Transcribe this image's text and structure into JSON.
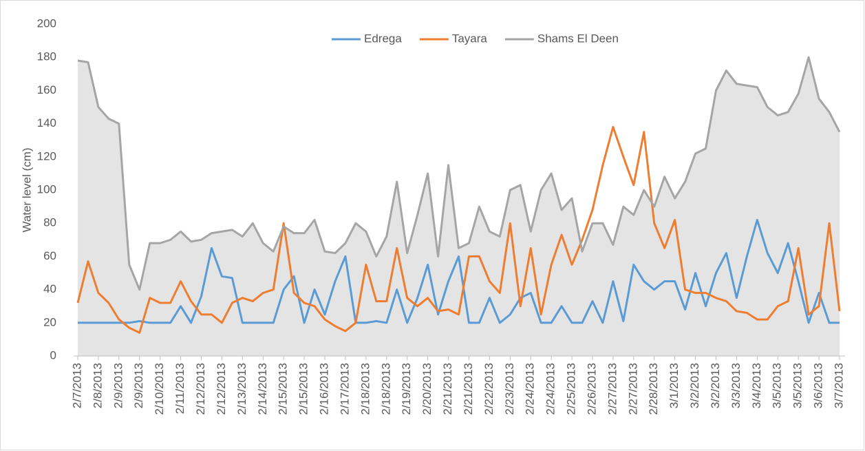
{
  "chart_data": {
    "type": "line",
    "y_label": "Water level (cm)",
    "categories": [
      "2/7/2013",
      null,
      "2/8/2013",
      null,
      "2/9/2013",
      null,
      "2/9/2013",
      null,
      "2/10/2013",
      null,
      "2/11/2013",
      null,
      "2/12/2013",
      null,
      "2/12/2013",
      null,
      "2/13/2013",
      null,
      "2/14/2013",
      null,
      "2/15/2013",
      null,
      "2/15/2013",
      null,
      "2/16/2013",
      null,
      "2/17/2013",
      null,
      "2/18/2013",
      null,
      "2/18/2013",
      null,
      "2/19/2013",
      null,
      "2/20/2013",
      null,
      "2/21/2013",
      null,
      "2/21/2013",
      null,
      "2/22/2013",
      null,
      "2/23/2013",
      null,
      "2/24/2013",
      null,
      "2/24/2013",
      null,
      "2/25/2013",
      null,
      "2/26/2013",
      null,
      "2/27/2013",
      null,
      "2/27/2013",
      null,
      "2/28/2013",
      null,
      "3/1/2013",
      null,
      "3/2/2013",
      null,
      "3/2/2013",
      null,
      "3/3/2013",
      null,
      "3/4/2013",
      null,
      "3/5/2013",
      null,
      "3/5/2013",
      null,
      "3/6/2013",
      null,
      "3/7/2013"
    ],
    "series": [
      {
        "name": "Edrega",
        "color": "#5b9bd5",
        "values": [
          20,
          20,
          20,
          20,
          20,
          20,
          21,
          20,
          20,
          20,
          30,
          20,
          36,
          65,
          48,
          47,
          20,
          20,
          20,
          20,
          40,
          48,
          20,
          40,
          25,
          45,
          60,
          20,
          20,
          21,
          20,
          40,
          20,
          35,
          55,
          25,
          45,
          60,
          20,
          20,
          35,
          20,
          25,
          35,
          38,
          20,
          20,
          30,
          20,
          20,
          33,
          20,
          45,
          21,
          55,
          45,
          40,
          45,
          45,
          28,
          50,
          30,
          50,
          62,
          35,
          60,
          82,
          62,
          50,
          68,
          45,
          20,
          38,
          20,
          20
        ]
      },
      {
        "name": "Tayara",
        "color": "#ed7d31",
        "values": [
          32,
          57,
          38,
          32,
          22,
          17,
          14,
          35,
          32,
          32,
          45,
          33,
          25,
          25,
          20,
          32,
          35,
          33,
          38,
          40,
          80,
          38,
          32,
          30,
          22,
          18,
          15,
          20,
          55,
          33,
          33,
          65,
          35,
          30,
          35,
          27,
          28,
          25,
          60,
          60,
          45,
          38,
          80,
          30,
          65,
          25,
          55,
          73,
          55,
          70,
          88,
          115,
          138,
          120,
          103,
          135,
          80,
          65,
          82,
          40,
          38,
          38,
          35,
          33,
          27,
          26,
          22,
          22,
          30,
          33,
          65,
          25,
          30,
          80,
          27
        ]
      },
      {
        "name": "Shams El Deen",
        "color": "#a5a5a5",
        "values": [
          178,
          177,
          150,
          143,
          140,
          55,
          40,
          68,
          68,
          70,
          75,
          69,
          70,
          74,
          75,
          76,
          72,
          80,
          68,
          63,
          78,
          74,
          74,
          82,
          63,
          62,
          68,
          80,
          75,
          60,
          72,
          105,
          62,
          85,
          110,
          60,
          115,
          65,
          68,
          90,
          75,
          72,
          100,
          103,
          75,
          100,
          110,
          88,
          95,
          63,
          80,
          80,
          67,
          90,
          85,
          100,
          90,
          108,
          95,
          105,
          122,
          125,
          160,
          172,
          164,
          163,
          162,
          150,
          145,
          147,
          158,
          180,
          155,
          147,
          135
        ]
      }
    ],
    "ylim": [
      0,
      200
    ],
    "yticks": [
      0,
      20,
      40,
      60,
      80,
      100,
      120,
      140,
      160,
      180,
      200
    ],
    "grid": false,
    "legend": "top",
    "area_series": "Shams El Deen"
  }
}
